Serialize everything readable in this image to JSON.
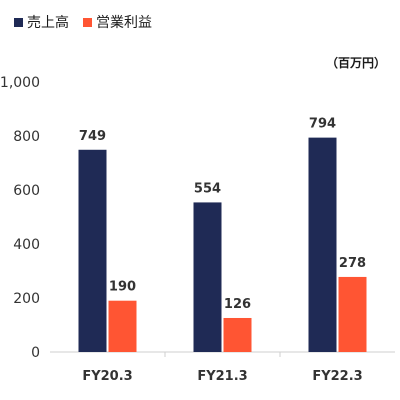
{
  "chart_data": {
    "type": "bar",
    "categories": [
      "FY20.3",
      "FY21.3",
      "FY22.3"
    ],
    "series": [
      {
        "name": "売上高",
        "values": [
          749,
          554,
          794
        ],
        "color": "#1f2a55"
      },
      {
        "name": "営業利益",
        "values": [
          190,
          126,
          278
        ],
        "color": "#ff5533"
      }
    ],
    "ylim": [
      0,
      1000
    ],
    "yticks": [
      "0",
      "200",
      "400",
      "600",
      "800",
      "1,000"
    ],
    "unit_label": "（百万円）",
    "grid": false,
    "legend": "top-left"
  }
}
